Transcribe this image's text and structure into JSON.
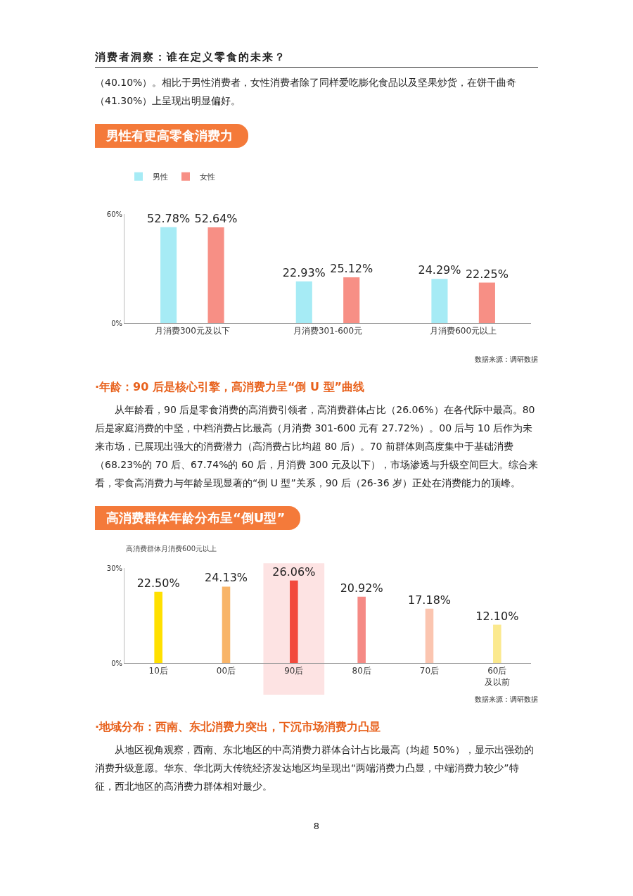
{
  "chart_data": [
    {
      "type": "bar",
      "title": "男性有更高零食消费力",
      "categories": [
        "月消费300元及以下",
        "月消费301-600元",
        "月消费600元以上"
      ],
      "series": [
        {
          "name": "男性",
          "color": "#a6ebf5",
          "values": [
            52.78,
            22.93,
            24.29
          ],
          "value_labels": [
            "52.78%",
            "22.93%",
            "24.29%"
          ]
        },
        {
          "name": "女性",
          "color": "#f78f85",
          "values": [
            52.64,
            25.12,
            22.25
          ],
          "value_labels": [
            "52.64%",
            "25.12%",
            "22.25%"
          ]
        }
      ],
      "ylim": [
        0,
        60
      ],
      "yticks": [
        {
          "value": 0,
          "label": "0%"
        },
        {
          "value": 60,
          "label": "60%"
        }
      ],
      "legend": "top left",
      "annotations": [
        "消费者洞察：谁在定义零食的未来？",
        "（40.10%）。相比于男性消费者，女性消费者除了同样爱吃膨化食品以及坚果炒货，在饼干曲奇（41.30%）上呈现出明显偏好。",
        "数据来源：调研数据",
        "·年龄：90 后是核心引擎，高消费力呈“倒 U 型”曲线",
        "从年龄看，90 后是零食消费的高消费引领者，高消费群体占比（26.06%）在各代际中最高。80 后是家庭消费的中坚，中档消费占比最高（月消费 301-600 元有 27.72%）。00 后与 10 后作为未来市场，已展现出强大的消费潜力（高消费占比均超 80 后）。70 前群体则高度集中于基础消费（68.23%的 70 后、67.74%的 60 后，月消费 300 元及以下），市场渗透与升级空间巨大。综合来看，零食高消费力与年龄呈现显著的“倒 U 型”关系，90 后（26-36 岁）正处在消费能力的顶峰。"
      ]
    },
    {
      "type": "bar",
      "title": "高消费群体年龄分布呈“倒U型”",
      "ylabel": "高消费群体月消费600元以上",
      "categories": [
        "10后",
        "00后",
        "90后",
        "80后",
        "70后",
        "60后及以前"
      ],
      "values": [
        22.5,
        24.13,
        26.06,
        20.92,
        17.18,
        12.1
      ],
      "value_labels": [
        "22.50%",
        "24.13%",
        "26.06%",
        "20.92%",
        "17.18%",
        "12.10%"
      ],
      "colors": [
        "#ffe000",
        "#f8b468",
        "#f2493c",
        "#f58a85",
        "#fbc5b0",
        "#fbe98e"
      ],
      "ylim": [
        0,
        30
      ],
      "yticks": [
        {
          "value": 0,
          "label": "0%"
        },
        {
          "value": 30,
          "label": "30%"
        }
      ],
      "bands": [
        {
          "axis": "x",
          "from": "90后",
          "to": "90后",
          "color": "#fde3e3"
        }
      ],
      "annotations": [
        "数据来源：调研数据",
        "·地域分布：西南、东北消费力突出，下沉市场消费力凸显",
        "从地区视角观察，西南、东北地区的中高消费力群体合计占比最高（均超 50%），显示出强劲的消费升级意愿。华东、华北两大传统经济发达地区均呈现出“两端消费力凸显，中端消费力较少”特征，西北地区的高消费力群体相对最少。",
        "8"
      ]
    }
  ]
}
